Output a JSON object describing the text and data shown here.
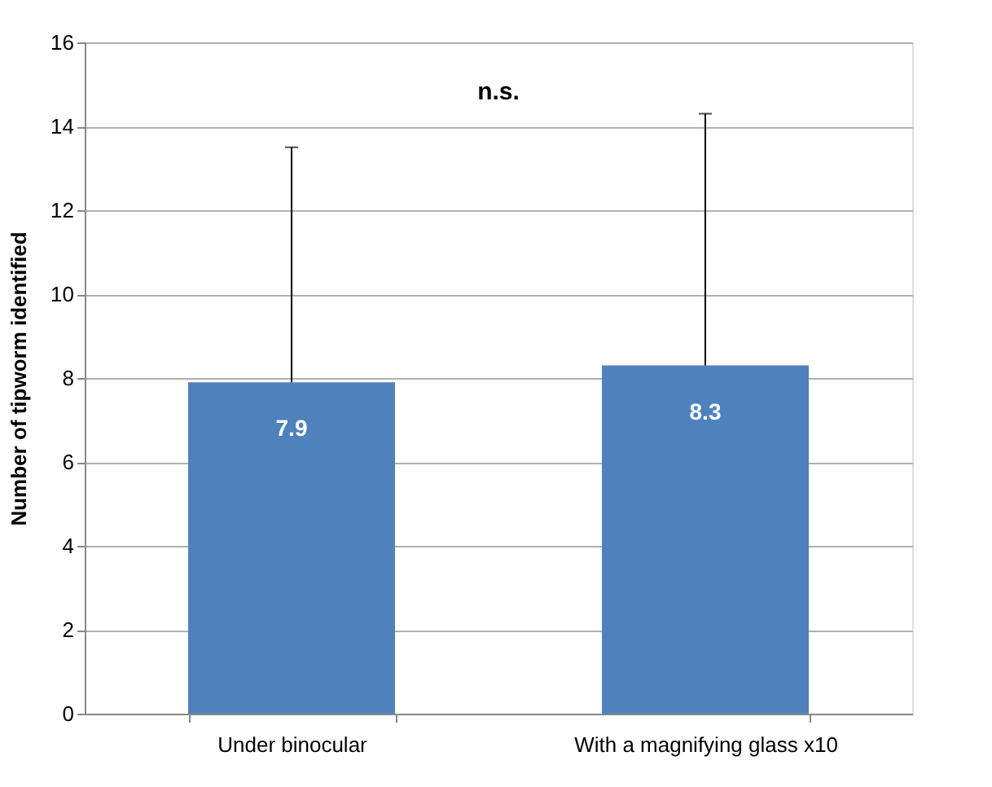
{
  "chart_data": {
    "type": "bar",
    "ylabel": "Number of tipworm identified",
    "categories": [
      "Under binocular",
      "With a magnifying glass x10"
    ],
    "values": [
      7.9,
      8.3
    ],
    "color": "#4f81bd",
    "errors": [
      [
        7.9,
        13.5
      ],
      [
        8.3,
        14.3
      ]
    ],
    "data_labels": true,
    "annotations": [
      "n.s."
    ],
    "ylim": [
      0,
      16
    ],
    "yticks": [
      0,
      2,
      4,
      6,
      8,
      10,
      12,
      14,
      16
    ],
    "grid": "y"
  }
}
